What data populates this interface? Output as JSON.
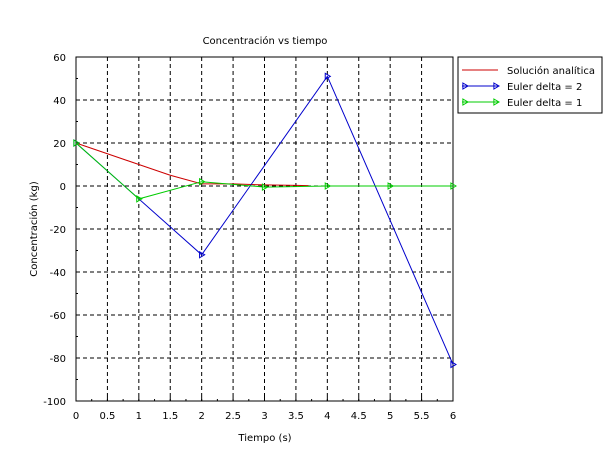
{
  "chart_data": {
    "type": "line",
    "title": "Concentración vs tiempo",
    "xlabel": "Tiempo (s)",
    "ylabel": "Concentración (kg)",
    "xlim": [
      0,
      6
    ],
    "ylim": [
      -100,
      60
    ],
    "xticks": [
      "0",
      "0.5",
      "1",
      "1.5",
      "2",
      "2.5",
      "3",
      "3.5",
      "4",
      "4.5",
      "5",
      "5.5",
      "6"
    ],
    "xtick_values": [
      0,
      0.5,
      1,
      1.5,
      2,
      2.5,
      3,
      3.5,
      4,
      4.5,
      5,
      5.5,
      6
    ],
    "yticks": [
      "60",
      "40",
      "20",
      "0",
      "-20",
      "-40",
      "-60",
      "-80",
      "-100"
    ],
    "ytick_values": [
      60,
      40,
      20,
      0,
      -20,
      -40,
      -60,
      -80,
      -100
    ],
    "grid": true,
    "legend_position": "top-right",
    "series": [
      {
        "name": "Solución analítica",
        "color": "#cc0000",
        "marker": "none",
        "x": [
          0,
          0.5,
          1,
          1.5,
          2,
          2.5,
          3,
          3.5,
          3.7
        ],
        "y": [
          20,
          15,
          10,
          5,
          1,
          1,
          0.5,
          0.3,
          0.2
        ]
      },
      {
        "name": "Euler delta = 2",
        "color": "#0000cc",
        "marker": "triangle-right",
        "x": [
          0,
          2,
          4,
          6
        ],
        "y": [
          20,
          -32,
          51,
          -83
        ]
      },
      {
        "name": "Euler delta = 1",
        "color": "#00cc00",
        "marker": "triangle-right",
        "x": [
          0,
          1,
          2,
          3,
          4,
          5,
          6
        ],
        "y": [
          20,
          -6,
          2,
          -0.5,
          0,
          0,
          0
        ]
      }
    ]
  }
}
